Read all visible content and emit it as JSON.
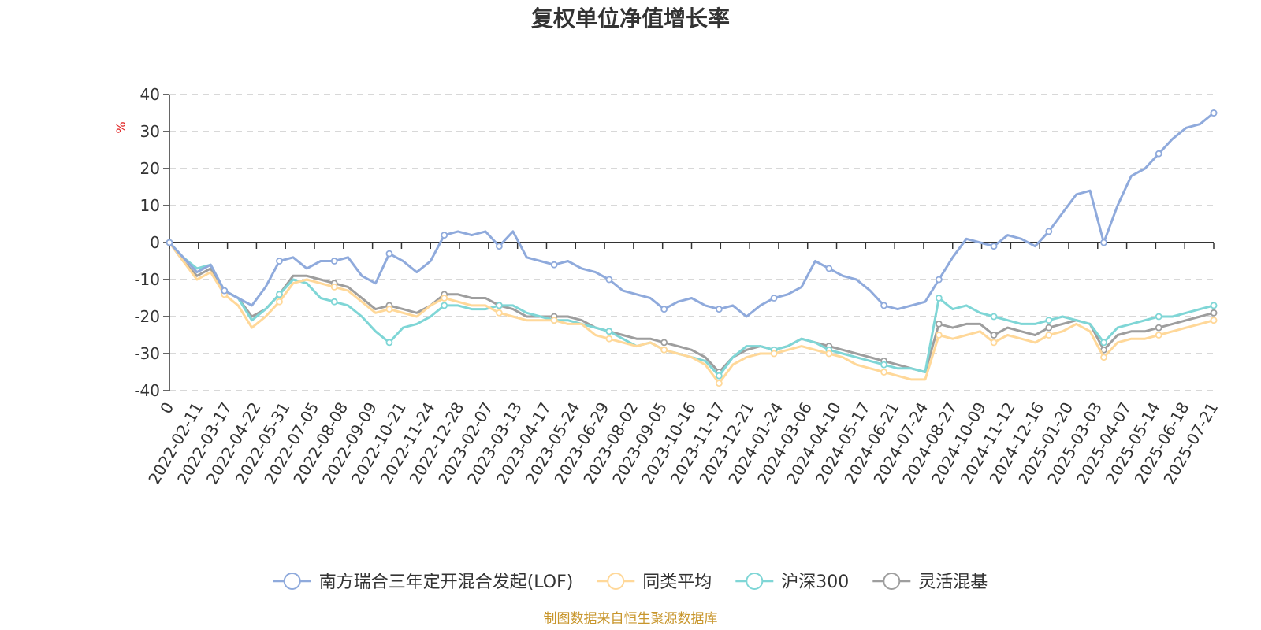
{
  "chart_data": {
    "type": "line",
    "title": "复权单位净值增长率",
    "ylabel": "%",
    "ylim": [
      -40,
      40
    ],
    "yticks": [
      40,
      30,
      20,
      10,
      0,
      -10,
      -20,
      -30,
      -40
    ],
    "xticks": [
      "0",
      "2022-02-11",
      "2022-03-17",
      "2022-04-22",
      "2022-05-31",
      "2022-07-05",
      "2022-08-08",
      "2022-09-09",
      "2022-10-21",
      "2022-11-24",
      "2022-12-28",
      "2023-02-07",
      "2023-03-13",
      "2023-04-17",
      "2023-05-24",
      "2023-06-29",
      "2023-08-02",
      "2023-09-05",
      "2023-10-16",
      "2023-11-17",
      "2023-12-21",
      "2024-01-24",
      "2024-03-06",
      "2024-04-10",
      "2024-05-17",
      "2024-06-21",
      "2024-07-24",
      "2024-08-27",
      "2024-10-09",
      "2024-11-12",
      "2024-12-16",
      "2025-01-20",
      "2025-03-03",
      "2025-04-07",
      "2025-05-14",
      "2025-06-18",
      "2025-07-21"
    ],
    "grid": "dashed horizontal",
    "legend_position": "bottom",
    "series": [
      {
        "name": "南方瑞合三年定开混合发起(LOF)",
        "color": "#8faadc",
        "values": [
          0,
          -4,
          -8,
          -6,
          -13,
          -15,
          -17,
          -12,
          -5,
          -4,
          -7,
          -5,
          -5,
          -4,
          -9,
          -11,
          -3,
          -5,
          -8,
          -5,
          2,
          3,
          2,
          3,
          -1,
          3,
          -4,
          -5,
          -6,
          -5,
          -7,
          -8,
          -10,
          -13,
          -14,
          -15,
          -18,
          -16,
          -15,
          -17,
          -18,
          -17,
          -20,
          -17,
          -15,
          -14,
          -12,
          -5,
          -7,
          -9,
          -10,
          -13,
          -17,
          -18,
          -17,
          -16,
          -10,
          -4,
          1,
          0,
          -1,
          2,
          1,
          -1,
          3,
          8,
          13,
          14,
          0,
          10,
          18,
          20,
          24,
          28,
          31,
          32,
          35
        ]
      },
      {
        "name": "同类平均",
        "color": "#ffd899",
        "values": [
          0,
          -5,
          -10,
          -8,
          -14,
          -17,
          -23,
          -20,
          -16,
          -11,
          -10,
          -11,
          -12,
          -13,
          -16,
          -19,
          -18,
          -19,
          -20,
          -17,
          -15,
          -16,
          -17,
          -17,
          -19,
          -20,
          -21,
          -21,
          -21,
          -22,
          -22,
          -25,
          -26,
          -27,
          -28,
          -27,
          -29,
          -30,
          -31,
          -33,
          -38,
          -33,
          -31,
          -30,
          -30,
          -29,
          -28,
          -29,
          -30,
          -31,
          -33,
          -34,
          -35,
          -36,
          -37,
          -37,
          -25,
          -26,
          -25,
          -24,
          -27,
          -25,
          -26,
          -27,
          -25,
          -24,
          -22,
          -24,
          -31,
          -27,
          -26,
          -26,
          -25,
          -24,
          -23,
          -22,
          -21
        ]
      },
      {
        "name": "沪深300",
        "color": "#7fd6d6",
        "values": [
          0,
          -4,
          -7,
          -6,
          -13,
          -15,
          -21,
          -18,
          -14,
          -10,
          -11,
          -15,
          -16,
          -17,
          -20,
          -24,
          -27,
          -23,
          -22,
          -20,
          -17,
          -17,
          -18,
          -18,
          -17,
          -17,
          -19,
          -20,
          -21,
          -21,
          -22,
          -23,
          -24,
          -26,
          -28,
          -27,
          -29,
          -30,
          -31,
          -32,
          -36,
          -31,
          -28,
          -28,
          -29,
          -28,
          -26,
          -27,
          -29,
          -30,
          -31,
          -32,
          -33,
          -34,
          -34,
          -35,
          -15,
          -18,
          -17,
          -19,
          -20,
          -21,
          -22,
          -22,
          -21,
          -20,
          -21,
          -22,
          -27,
          -23,
          -22,
          -21,
          -20,
          -20,
          -19,
          -18,
          -17
        ]
      },
      {
        "name": "灵活混基",
        "color": "#9e9e9e",
        "values": [
          0,
          -5,
          -9,
          -7,
          -13,
          -15,
          -20,
          -18,
          -14,
          -9,
          -9,
          -10,
          -11,
          -12,
          -15,
          -18,
          -17,
          -18,
          -19,
          -17,
          -14,
          -14,
          -15,
          -15,
          -17,
          -18,
          -20,
          -20,
          -20,
          -20,
          -21,
          -23,
          -24,
          -25,
          -26,
          -26,
          -27,
          -28,
          -29,
          -31,
          -35,
          -31,
          -29,
          -28,
          -29,
          -28,
          -26,
          -27,
          -28,
          -29,
          -30,
          -31,
          -32,
          -33,
          -34,
          -35,
          -22,
          -23,
          -22,
          -22,
          -25,
          -23,
          -24,
          -25,
          -23,
          -22,
          -21,
          -22,
          -29,
          -25,
          -24,
          -24,
          -23,
          -22,
          -21,
          -20,
          -19
        ]
      }
    ]
  },
  "footer": {
    "source": "制图数据来自恒生聚源数据库"
  }
}
